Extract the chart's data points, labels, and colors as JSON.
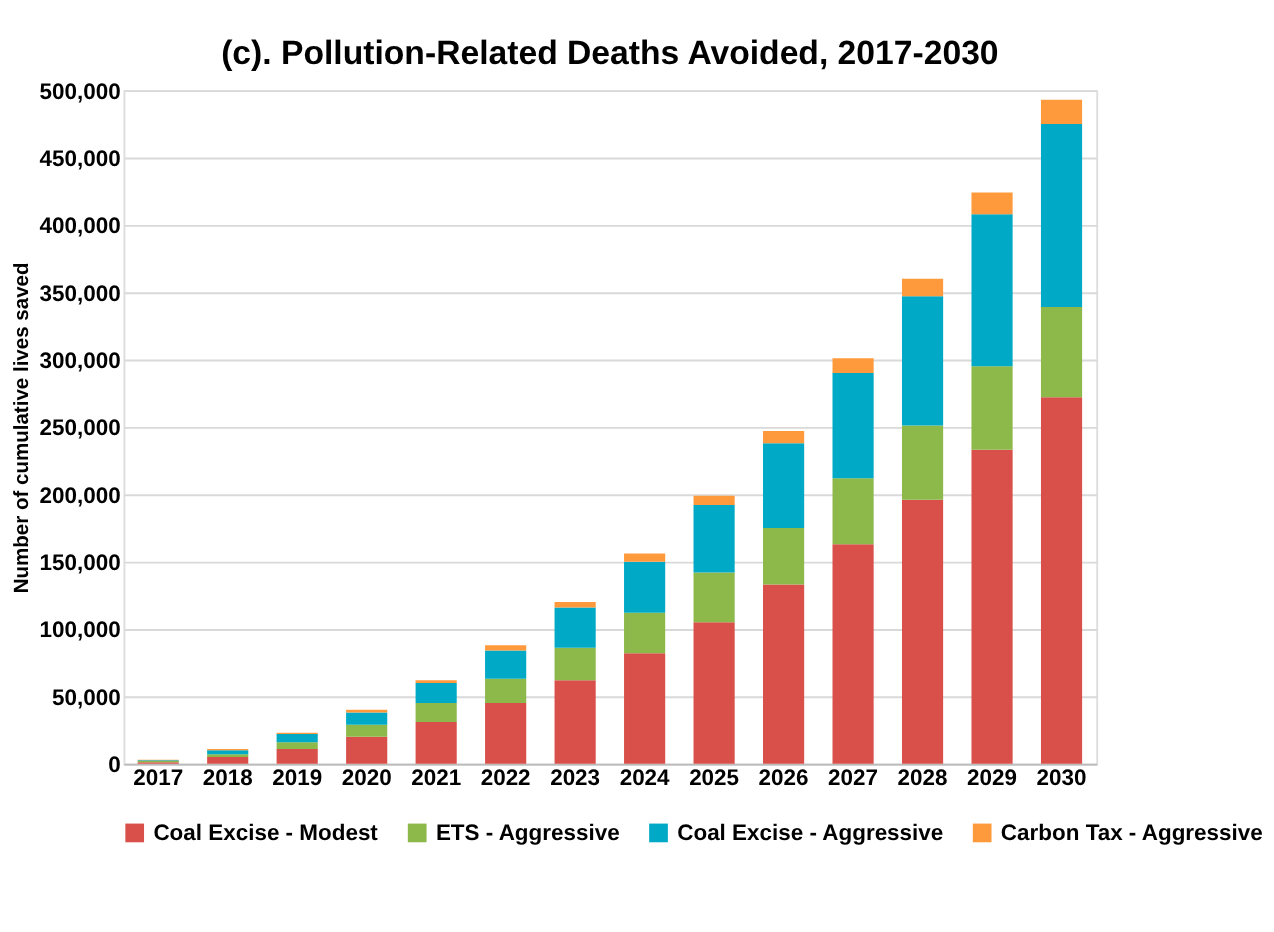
{
  "chart_data": {
    "type": "bar",
    "title": "(c). Pollution-Related Deaths Avoided, 2017-2030",
    "ylabel": "Number of cumulative lives saved",
    "stacked": true,
    "categories": [
      "2017",
      "2018",
      "2019",
      "2020",
      "2021",
      "2022",
      "2023",
      "2024",
      "2025",
      "2026",
      "2027",
      "2028",
      "2029",
      "2030"
    ],
    "series": [
      {
        "name": "Coal Excise - Modest",
        "color": "#d9504a",
        "values": [
          1000,
          5000,
          11000,
          20000,
          31000,
          45000,
          62000,
          82000,
          105000,
          133000,
          163000,
          196000,
          233000,
          272000
        ]
      },
      {
        "name": "ETS - Aggressive",
        "color": "#8db84a",
        "values": [
          1000,
          2000,
          5000,
          9000,
          14000,
          18000,
          24000,
          30000,
          37000,
          42000,
          49000,
          55000,
          62000,
          67000
        ]
      },
      {
        "name": "Coal Excise - Aggressive",
        "color": "#00aac6",
        "values": [
          500,
          3000,
          6000,
          9000,
          15000,
          21000,
          30000,
          38000,
          50000,
          63000,
          78000,
          96000,
          113000,
          136000
        ]
      },
      {
        "name": "Carbon Tax - Aggressive",
        "color": "#ff9a3c",
        "values": [
          500,
          1000,
          1000,
          2000,
          2000,
          4000,
          4000,
          6000,
          7000,
          9000,
          11000,
          13000,
          16000,
          18000
        ]
      }
    ],
    "ylim": [
      0,
      500000
    ],
    "yticks": [
      0,
      {
        "value": 50000,
        "label": "50,000"
      },
      {
        "value": 100000,
        "label": "100,000"
      },
      {
        "value": 150000,
        "label": "150,000"
      },
      {
        "value": 200000,
        "label": "200,000"
      },
      {
        "value": 250000,
        "label": "250,000"
      },
      {
        "value": 300000,
        "label": "300,000"
      },
      {
        "value": 350000,
        "label": "350,000"
      },
      {
        "value": 400000,
        "label": "400,000"
      },
      {
        "value": 450000,
        "label": "450,000"
      },
      {
        "value": 500000,
        "label": "500,000"
      }
    ],
    "grid": "y",
    "legend": "bottom"
  }
}
